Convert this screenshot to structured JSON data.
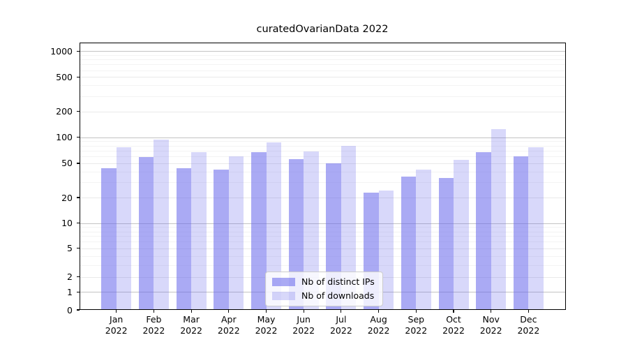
{
  "chart_data": {
    "type": "bar",
    "title": "curatedOvarianData 2022",
    "categories": [
      "Jan",
      "Feb",
      "Mar",
      "Apr",
      "May",
      "Jun",
      "Jul",
      "Aug",
      "Sep",
      "Oct",
      "Nov",
      "Dec"
    ],
    "year_label": "2022",
    "series": [
      {
        "name": "Nb of distinct IPs",
        "color": "rgba(100,100,235,0.55)",
        "values": [
          44,
          59,
          44,
          42,
          67,
          56,
          50,
          23,
          35,
          34,
          68,
          60
        ]
      },
      {
        "name": "Nb of downloads",
        "color": "rgba(100,100,235,0.25)",
        "values": [
          77,
          94,
          68,
          60,
          87,
          69,
          79,
          24,
          42,
          55,
          125,
          77
        ]
      }
    ],
    "yscale": "asinh",
    "linear_width": 2,
    "ylim": [
      0,
      1267
    ],
    "y_ticks_labeled": [
      0,
      1,
      2,
      5,
      10,
      20,
      50,
      100,
      200,
      500,
      1000
    ],
    "y_ticks_major": [
      1,
      10,
      100,
      1000
    ],
    "y_ticks_minor": [
      3,
      4,
      6,
      7,
      8,
      9,
      30,
      40,
      60,
      70,
      80,
      90,
      300,
      400,
      600,
      700,
      800,
      900
    ],
    "grid": true,
    "legend_position": "lower center"
  },
  "colors": {
    "background": "#ffffff",
    "axis": "#000000",
    "grid_major": "#c3c3c3",
    "grid_sub": "#e9e9e9",
    "grid_minor": "#f3f3f3",
    "bar_base": "#6464eb"
  }
}
